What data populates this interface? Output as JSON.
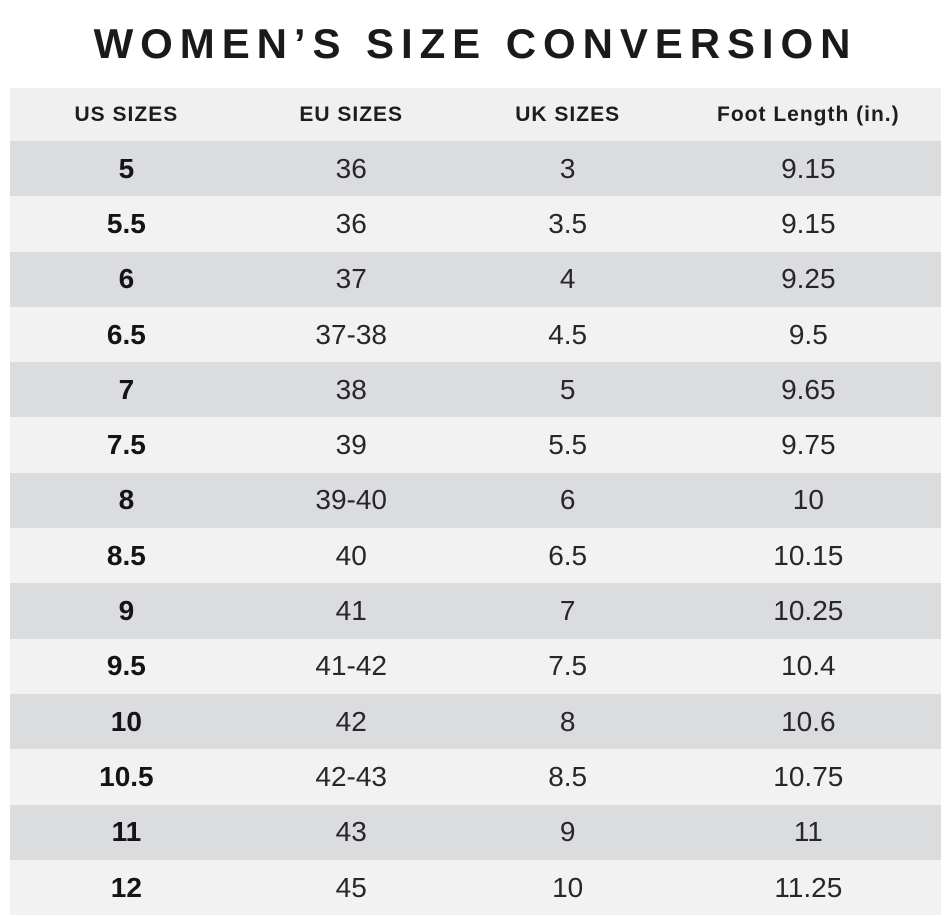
{
  "page_title": "WOMEN’S SIZE CONVERSION",
  "chart_data": {
    "type": "table",
    "title": "WOMEN’S SIZE CONVERSION",
    "columns": [
      "US SIZES",
      "EU SIZES",
      "UK SIZES",
      "Foot Length (in.)"
    ],
    "rows": [
      [
        "5",
        "36",
        "3",
        "9.15"
      ],
      [
        "5.5",
        "36",
        "3.5",
        "9.15"
      ],
      [
        "6",
        "37",
        "4",
        "9.25"
      ],
      [
        "6.5",
        "37-38",
        "4.5",
        "9.5"
      ],
      [
        "7",
        "38",
        "5",
        "9.65"
      ],
      [
        "7.5",
        "39",
        "5.5",
        "9.75"
      ],
      [
        "8",
        "39-40",
        "6",
        "10"
      ],
      [
        "8.5",
        "40",
        "6.5",
        "10.15"
      ],
      [
        "9",
        "41",
        "7",
        "10.25"
      ],
      [
        "9.5",
        "41-42",
        "7.5",
        "10.4"
      ],
      [
        "10",
        "42",
        "8",
        "10.6"
      ],
      [
        "10.5",
        "42-43",
        "8.5",
        "10.75"
      ],
      [
        "11",
        "43",
        "9",
        "11"
      ],
      [
        "12",
        "45",
        "10",
        "11.25"
      ]
    ]
  },
  "colors": {
    "page_background": "#ffffff",
    "header_row_background": "#f0f0f1",
    "row_stripe_dark": "#dbdcde",
    "row_stripe_light": "#f2f2f3",
    "text": "#1d1d1f"
  }
}
